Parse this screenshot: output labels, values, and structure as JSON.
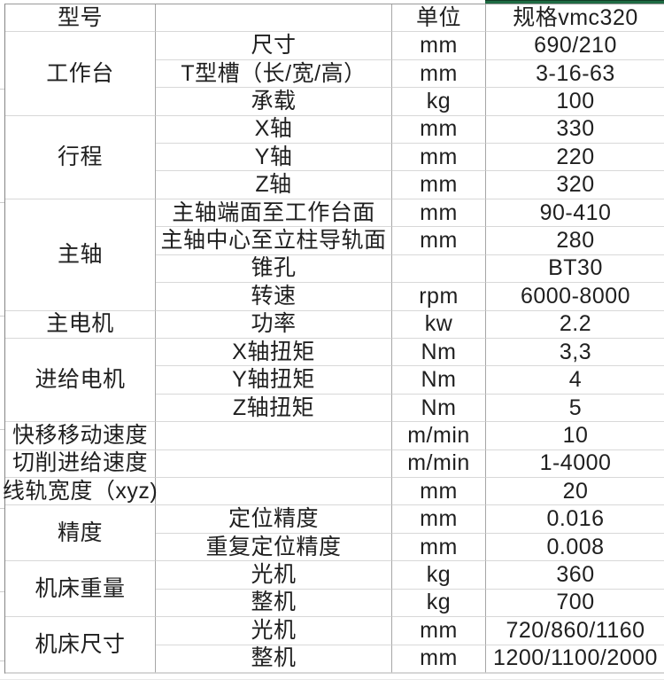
{
  "colors": {
    "selection_green": "#1E6B43",
    "grid_vertical": "#A6A6A6",
    "grid_horizontal": "#D8D8D8",
    "text": "#1F1F1F"
  },
  "table": {
    "header": {
      "model": "型号",
      "item": "",
      "unit": "单位",
      "spec": "规格vmc320"
    },
    "rows": [
      {
        "category": "工作台",
        "category_span": 3,
        "item": "尺寸",
        "unit": "mm",
        "value": "690/210"
      },
      {
        "item": "T型槽（长/宽/高）",
        "unit": "mm",
        "value": "3-16-63"
      },
      {
        "item": "承载",
        "unit": "kg",
        "value": "100"
      },
      {
        "category": "行程",
        "category_span": 3,
        "item": "X轴",
        "unit": "mm",
        "value": "330"
      },
      {
        "item": "Y轴",
        "unit": "mm",
        "value": "220"
      },
      {
        "item": "Z轴",
        "unit": "mm",
        "value": "320"
      },
      {
        "category": "主轴",
        "category_span": 4,
        "item": "主轴端面至工作台面",
        "unit": "mm",
        "value": "90-410"
      },
      {
        "item": "主轴中心至立柱导轨面",
        "unit": "mm",
        "value": "280"
      },
      {
        "item": "锥孔",
        "unit": "",
        "value": "BT30"
      },
      {
        "item": "转速",
        "unit": "rpm",
        "value": "6000-8000"
      },
      {
        "category": "主电机",
        "category_span": 1,
        "item": "功率",
        "unit": "kw",
        "value": "2.2"
      },
      {
        "category": "进给电机",
        "category_span": 3,
        "item": "X轴扭矩",
        "unit": "Nm",
        "value": "3,3"
      },
      {
        "item": "Y轴扭矩",
        "unit": "Nm",
        "value": "4"
      },
      {
        "item": "Z轴扭矩",
        "unit": "Nm",
        "value": "5"
      },
      {
        "category": "快移移动速度",
        "category_span": 1,
        "item": "",
        "unit": "m/min",
        "value": "10"
      },
      {
        "category": "切削进给速度",
        "category_span": 1,
        "item": "",
        "unit": "m/min",
        "value": "1-4000"
      },
      {
        "category": "线轨宽度（xyz)",
        "category_span": 1,
        "item": "",
        "unit": "mm",
        "value": "20"
      },
      {
        "category": "精度",
        "category_span": 2,
        "item": "定位精度",
        "unit": "mm",
        "value": "0.016"
      },
      {
        "item": "重复定位精度",
        "unit": "mm",
        "value": "0.008"
      },
      {
        "category": "机床重量",
        "category_span": 2,
        "item": "光机",
        "unit": "kg",
        "value": "360"
      },
      {
        "item": "整机",
        "unit": "kg",
        "value": "700"
      },
      {
        "category": "机床尺寸",
        "category_span": 2,
        "item": "光机",
        "unit": "mm",
        "value": "720/860/1160"
      },
      {
        "item": "整机",
        "unit": "mm",
        "value": "1200/1100/2000"
      }
    ]
  }
}
